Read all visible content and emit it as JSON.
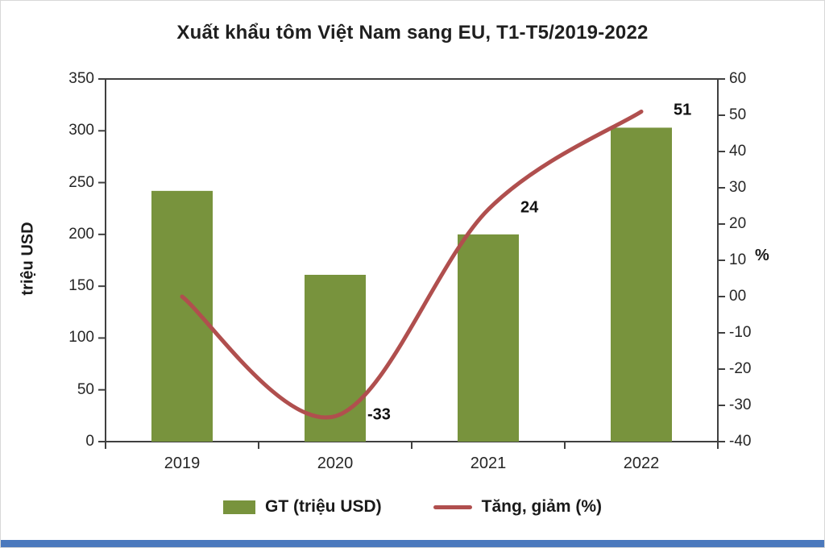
{
  "page": {
    "footer_color": "#4b79bd"
  },
  "chart_data": {
    "type": "bar",
    "subtype": "bar-and-line-combo",
    "title": "Xuất khẩu tôm Việt Nam sang EU, T1-T5/2019-2022",
    "categories": [
      "2019",
      "2020",
      "2021",
      "2022"
    ],
    "series": [
      {
        "name": "GT (triệu USD)",
        "type": "bar",
        "axis": "left",
        "color": "#78933d",
        "values": [
          242,
          161,
          200,
          303
        ]
      },
      {
        "name": "Tăng, giảm (%)",
        "type": "line",
        "axis": "right",
        "color": "#b04f4e",
        "values": [
          0,
          -33,
          24,
          51
        ],
        "point_labels": [
          null,
          "-33",
          "24",
          "51"
        ]
      }
    ],
    "left_axis": {
      "title": "triệu USD",
      "min": 0,
      "max": 350,
      "step": 50,
      "tick_labels": [
        "350",
        "300",
        "250",
        "200",
        "150",
        "100",
        "50",
        "0"
      ]
    },
    "right_axis": {
      "title": "%",
      "min": -40,
      "max": 60,
      "step": 10,
      "tick_labels": [
        "60",
        "50",
        "40",
        "30",
        "20",
        "10",
        "00",
        "-10",
        "-20",
        "-30",
        "-40"
      ]
    },
    "legend_position": "bottom",
    "grid": false
  }
}
